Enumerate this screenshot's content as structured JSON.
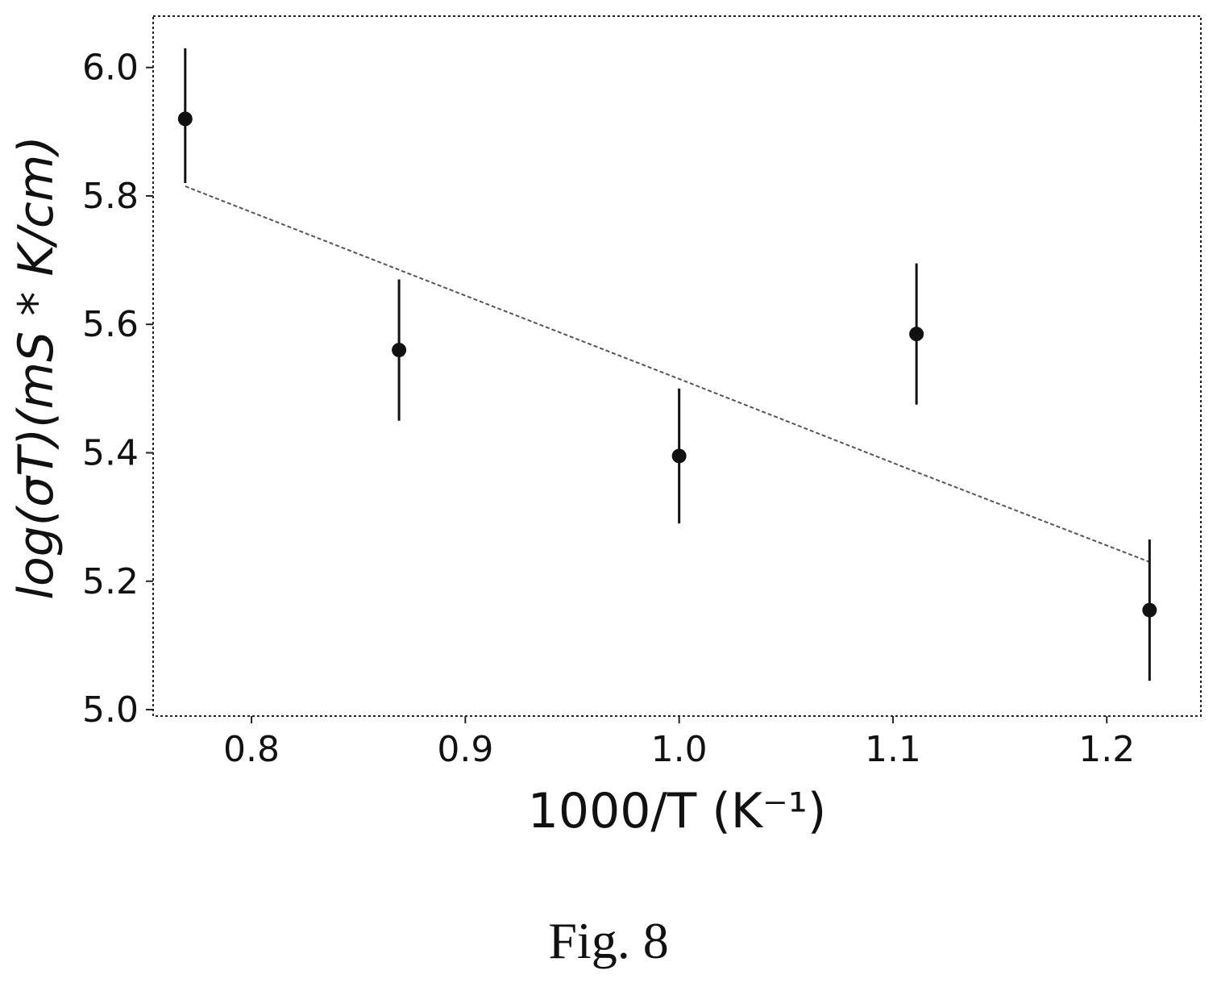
{
  "chart_data": {
    "type": "scatter",
    "xlabel": "1000/T (K⁻¹)",
    "ylabel": "log(σT)(mS * K/cm)",
    "x_ticks": [
      "0.8",
      "0.9",
      "1.0",
      "1.1",
      "1.2"
    ],
    "y_ticks": [
      "5.0",
      "5.2",
      "5.4",
      "5.6",
      "5.8",
      "6.0"
    ],
    "xlim": [
      0.754,
      1.244
    ],
    "ylim": [
      4.99,
      6.08
    ],
    "grid": false,
    "series": [
      {
        "kind": "errorbar",
        "color": "#111111",
        "points": [
          {
            "x": 0.769,
            "y": 5.92,
            "yerr_low": 0.1,
            "yerr_high": 0.11
          },
          {
            "x": 0.869,
            "y": 5.56,
            "yerr_low": 0.11,
            "yerr_high": 0.11
          },
          {
            "x": 1.0,
            "y": 5.395,
            "yerr_low": 0.105,
            "yerr_high": 0.105
          },
          {
            "x": 1.111,
            "y": 5.585,
            "yerr_low": 0.11,
            "yerr_high": 0.11
          },
          {
            "x": 1.22,
            "y": 5.155,
            "yerr_low": 0.11,
            "yerr_high": 0.11
          }
        ]
      },
      {
        "kind": "fit_line",
        "style": "dashed",
        "color": "#555555",
        "points": [
          {
            "x": 0.769,
            "y": 5.815
          },
          {
            "x": 0.869,
            "y": 5.685
          },
          {
            "x": 1.0,
            "y": 5.515
          },
          {
            "x": 1.111,
            "y": 5.37
          },
          {
            "x": 1.22,
            "y": 5.23
          }
        ]
      }
    ]
  },
  "caption": "Fig. 8"
}
